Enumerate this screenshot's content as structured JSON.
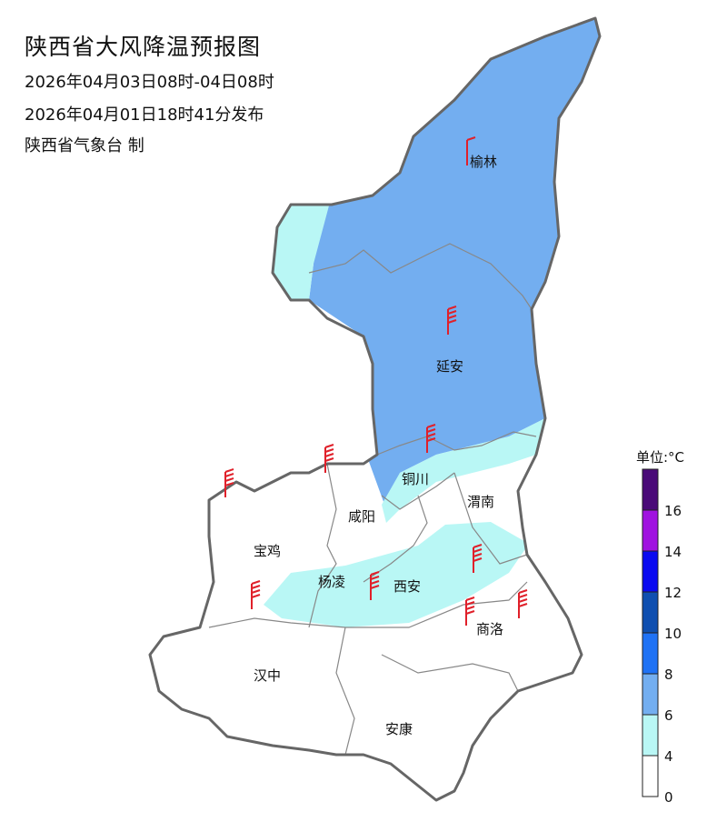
{
  "header": {
    "title": "陕西省大风降温预报图",
    "period": "2026年04月03日08时-04日08时",
    "issued": "2026年04月01日18时41分发布",
    "organization": "陕西省气象台 制"
  },
  "map": {
    "region": "陕西省",
    "cities": [
      "榆林",
      "延安",
      "铜川",
      "咸阳",
      "渭南",
      "宝鸡",
      "杨凌",
      "西安",
      "商洛",
      "汉中",
      "安康"
    ],
    "fill_levels": {
      "4-6": "#b9f7f5",
      "6-8": "#73aef0"
    },
    "wind_barb_color": "#e0202a",
    "boundary_color": "#666666"
  },
  "legend": {
    "title": "单位:°C",
    "colors": [
      "#ffffff",
      "#b9f7f5",
      "#73aef0",
      "#1f72f5",
      "#0f4fb0",
      "#0a0af0",
      "#a012e0",
      "#4a0a78"
    ],
    "tick_labels": [
      "0",
      "4",
      "6",
      "8",
      "10",
      "12",
      "14",
      "16"
    ]
  }
}
